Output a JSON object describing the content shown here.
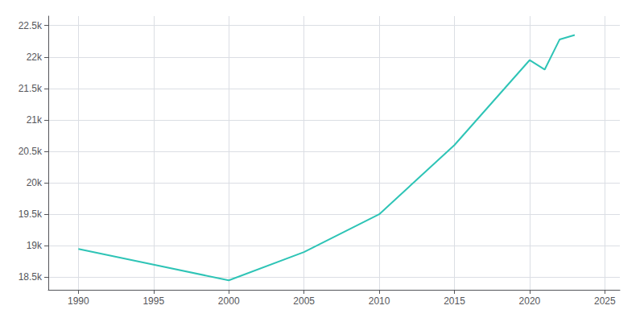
{
  "chart_data": {
    "type": "line",
    "x": [
      1990,
      1995,
      2000,
      2005,
      2010,
      2015,
      2020,
      2021,
      2022,
      2023
    ],
    "values": [
      18950,
      18700,
      18450,
      18900,
      19500,
      20600,
      21950,
      21800,
      22280,
      22350
    ],
    "color": "#2EC4B6",
    "xlim": [
      1988,
      2026
    ],
    "ylim": [
      18300,
      22650
    ],
    "xticks": [
      1990,
      1995,
      2000,
      2005,
      2010,
      2015,
      2020,
      2025
    ],
    "yticks": [
      {
        "value": 18500,
        "label": "18.5k"
      },
      {
        "value": 19000,
        "label": "19k"
      },
      {
        "value": 19500,
        "label": "19.5k"
      },
      {
        "value": 20000,
        "label": "20k"
      },
      {
        "value": 20500,
        "label": "20.5k"
      },
      {
        "value": 21000,
        "label": "21k"
      },
      {
        "value": 21500,
        "label": "21.5k"
      },
      {
        "value": 22000,
        "label": "22k"
      },
      {
        "value": 22500,
        "label": "22.5k"
      }
    ],
    "grid": true
  }
}
